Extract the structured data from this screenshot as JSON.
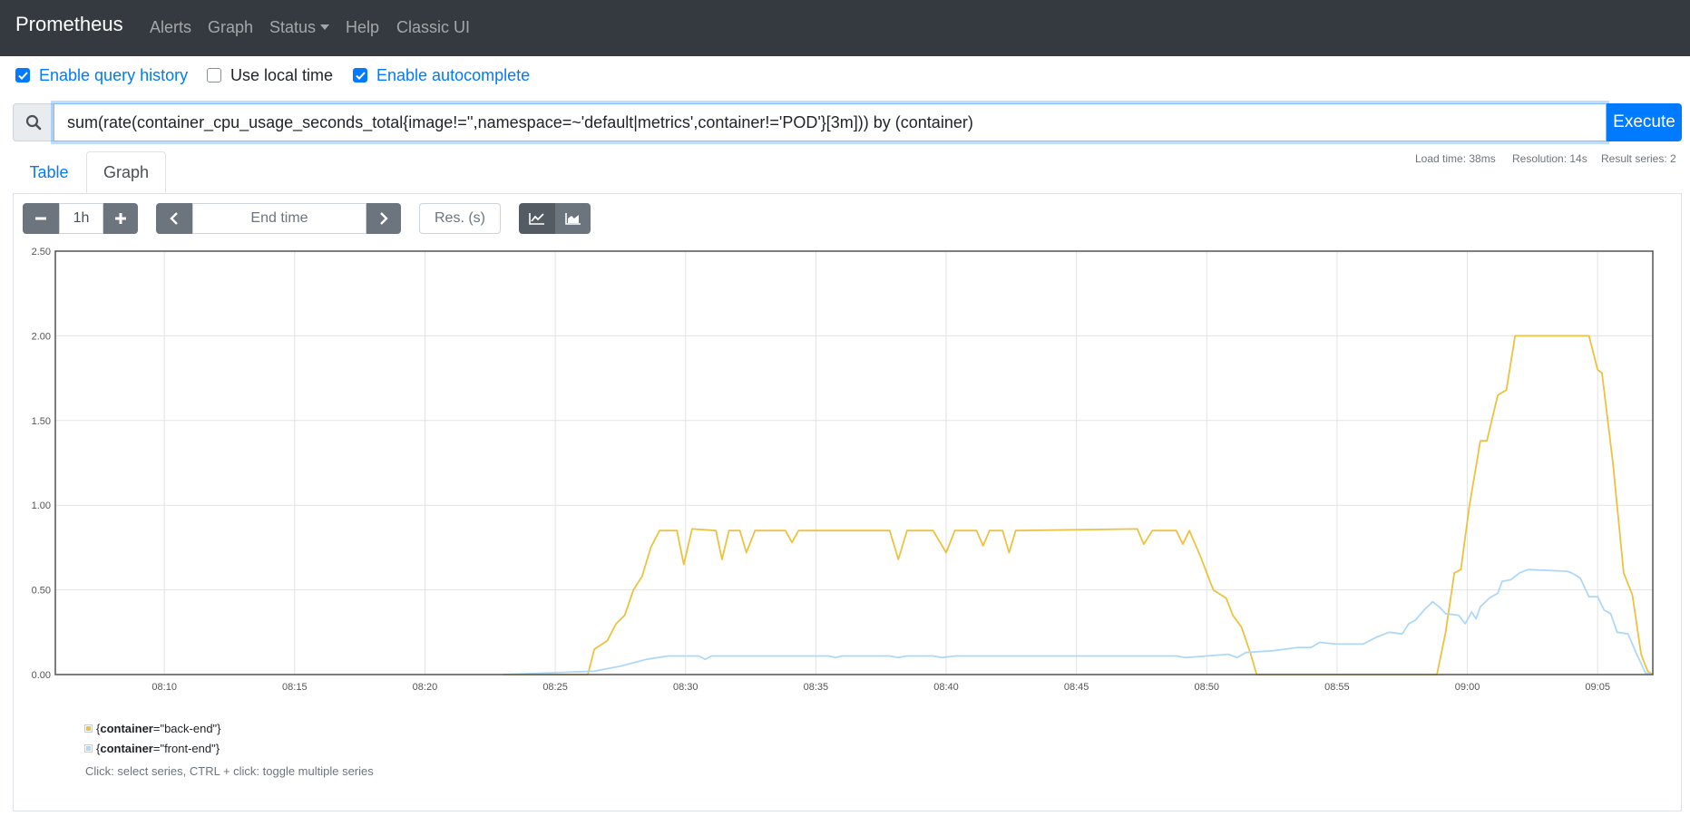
{
  "navbar": {
    "brand": "Prometheus",
    "items": [
      {
        "label": "Alerts"
      },
      {
        "label": "Graph"
      },
      {
        "label": "Status"
      },
      {
        "label": "Help"
      },
      {
        "label": "Classic UI"
      }
    ]
  },
  "options": {
    "query_history": {
      "label": "Enable query history",
      "checked": true
    },
    "local_time": {
      "label": "Use local time",
      "checked": false
    },
    "autocomplete": {
      "label": "Enable autocomplete",
      "checked": true
    }
  },
  "query": {
    "expression": "sum(rate(container_cpu_usage_seconds_total{image!='',namespace=~'default|metrics',container!='POD'}[3m])) by (container)",
    "execute_label": "Execute"
  },
  "tabs": {
    "table": "Table",
    "graph": "Graph",
    "active": "graph"
  },
  "stats": {
    "load_time": "Load time: 38ms",
    "resolution": "Resolution: 14s",
    "result_series": "Result series: 2"
  },
  "controls": {
    "range": "1h",
    "end_time_placeholder": "End time",
    "resolution_placeholder": "Res. (s)",
    "mode": "lines"
  },
  "icons": {
    "search": "search-icon",
    "minus": "minus-icon",
    "plus": "plus-icon",
    "prev": "chevron-left-icon",
    "next": "chevron-right-icon",
    "lines": "line-chart-icon",
    "stacked": "area-chart-icon"
  },
  "colors": {
    "navbar": "#343a40",
    "accent": "#007bff",
    "back_end": "#edc240",
    "front_end": "#afd8f8"
  },
  "legend": {
    "items": [
      {
        "key": "container",
        "value": "\"back-end\"",
        "color": "#edc240"
      },
      {
        "key": "container",
        "value": "\"front-end\"",
        "color": "#afd8f8"
      }
    ],
    "hint": "Click: select series, CTRL + click: toggle multiple series"
  },
  "chart_data": {
    "type": "line",
    "x_unit": "time (HH:MM)",
    "xlim": [
      "08:05:49",
      "09:07:07"
    ],
    "ylim": [
      0,
      2.5
    ],
    "yticks": [
      "0.00",
      "0.50",
      "1.00",
      "1.50",
      "2.00",
      "2.50"
    ],
    "xticks": [
      "08:10",
      "08:15",
      "08:20",
      "08:25",
      "08:30",
      "08:35",
      "08:40",
      "08:45",
      "08:50",
      "08:55",
      "09:00",
      "09:05"
    ],
    "grid": true,
    "series": [
      {
        "name": "{container=\"back-end\"}",
        "color": "#edc240",
        "points": [
          [
            "08:23:00",
            0
          ],
          [
            "08:26:15",
            0
          ],
          [
            "08:26:30",
            0.15
          ],
          [
            "08:27:00",
            0.2
          ],
          [
            "08:27:20",
            0.3
          ],
          [
            "08:27:40",
            0.35
          ],
          [
            "08:28:00",
            0.5
          ],
          [
            "08:28:20",
            0.58
          ],
          [
            "08:28:40",
            0.75
          ],
          [
            "08:29:00",
            0.85
          ],
          [
            "08:29:40",
            0.85
          ],
          [
            "08:29:56",
            0.65
          ],
          [
            "08:30:15",
            0.86
          ],
          [
            "08:31:10",
            0.85
          ],
          [
            "08:31:24",
            0.68
          ],
          [
            "08:31:40",
            0.85
          ],
          [
            "08:32:05",
            0.85
          ],
          [
            "08:32:20",
            0.72
          ],
          [
            "08:32:40",
            0.85
          ],
          [
            "08:33:50",
            0.85
          ],
          [
            "08:34:05",
            0.78
          ],
          [
            "08:34:20",
            0.85
          ],
          [
            "08:37:50",
            0.85
          ],
          [
            "08:38:10",
            0.68
          ],
          [
            "08:38:30",
            0.85
          ],
          [
            "08:39:30",
            0.85
          ],
          [
            "08:40:00",
            0.72
          ],
          [
            "08:40:20",
            0.85
          ],
          [
            "08:41:10",
            0.85
          ],
          [
            "08:41:25",
            0.76
          ],
          [
            "08:41:40",
            0.85
          ],
          [
            "08:42:10",
            0.85
          ],
          [
            "08:42:25",
            0.72
          ],
          [
            "08:42:40",
            0.85
          ],
          [
            "08:47:20",
            0.86
          ],
          [
            "08:47:35",
            0.77
          ],
          [
            "08:47:55",
            0.85
          ],
          [
            "08:48:50",
            0.85
          ],
          [
            "08:49:05",
            0.77
          ],
          [
            "08:49:20",
            0.85
          ],
          [
            "08:49:45",
            0.7
          ],
          [
            "08:50:15",
            0.5
          ],
          [
            "08:50:45",
            0.45
          ],
          [
            "08:51:00",
            0.35
          ],
          [
            "08:51:20",
            0.28
          ],
          [
            "08:51:40",
            0.13
          ],
          [
            "08:51:55",
            0
          ],
          [
            "08:58:50",
            0
          ],
          [
            "08:59:10",
            0.25
          ],
          [
            "08:59:30",
            0.6
          ],
          [
            "08:59:45",
            0.62
          ],
          [
            "09:00:05",
            1.0
          ],
          [
            "09:00:30",
            1.38
          ],
          [
            "09:00:45",
            1.38
          ],
          [
            "09:01:10",
            1.65
          ],
          [
            "09:01:30",
            1.68
          ],
          [
            "09:01:50",
            2.0
          ],
          [
            "09:04:40",
            2.0
          ],
          [
            "09:05:00",
            1.8
          ],
          [
            "09:05:10",
            1.78
          ],
          [
            "09:05:35",
            1.25
          ],
          [
            "09:06:00",
            0.6
          ],
          [
            "09:06:20",
            0.47
          ],
          [
            "09:06:40",
            0.12
          ],
          [
            "09:06:55",
            0.02
          ],
          [
            "09:07:07",
            0
          ]
        ]
      },
      {
        "name": "{container=\"front-end\"}",
        "color": "#afd8f8",
        "points": [
          [
            "08:23:00",
            0
          ],
          [
            "08:26:30",
            0.02
          ],
          [
            "08:27:30",
            0.05
          ],
          [
            "08:28:30",
            0.09
          ],
          [
            "08:29:20",
            0.11
          ],
          [
            "08:30:30",
            0.11
          ],
          [
            "08:30:45",
            0.09
          ],
          [
            "08:31:00",
            0.11
          ],
          [
            "08:35:30",
            0.11
          ],
          [
            "08:35:45",
            0.1
          ],
          [
            "08:36:00",
            0.11
          ],
          [
            "08:37:50",
            0.11
          ],
          [
            "08:38:10",
            0.1
          ],
          [
            "08:38:30",
            0.11
          ],
          [
            "08:39:30",
            0.11
          ],
          [
            "08:39:50",
            0.1
          ],
          [
            "08:40:20",
            0.11
          ],
          [
            "08:48:50",
            0.11
          ],
          [
            "08:49:10",
            0.1
          ],
          [
            "08:50:00",
            0.11
          ],
          [
            "08:50:50",
            0.12
          ],
          [
            "08:51:10",
            0.1
          ],
          [
            "08:51:30",
            0.13
          ],
          [
            "08:52:30",
            0.14
          ],
          [
            "08:53:00",
            0.15
          ],
          [
            "08:53:30",
            0.16
          ],
          [
            "08:54:00",
            0.16
          ],
          [
            "08:54:20",
            0.19
          ],
          [
            "08:55:00",
            0.18
          ],
          [
            "08:56:00",
            0.18
          ],
          [
            "08:56:30",
            0.22
          ],
          [
            "08:57:00",
            0.25
          ],
          [
            "08:57:30",
            0.24
          ],
          [
            "08:57:45",
            0.3
          ],
          [
            "08:58:00",
            0.32
          ],
          [
            "08:58:20",
            0.38
          ],
          [
            "08:58:40",
            0.43
          ],
          [
            "08:58:55",
            0.4
          ],
          [
            "08:59:10",
            0.36
          ],
          [
            "08:59:40",
            0.35
          ],
          [
            "08:59:55",
            0.3
          ],
          [
            "09:00:10",
            0.37
          ],
          [
            "09:00:20",
            0.33
          ],
          [
            "09:00:30",
            0.4
          ],
          [
            "09:00:50",
            0.45
          ],
          [
            "09:01:10",
            0.48
          ],
          [
            "09:01:20",
            0.55
          ],
          [
            "09:01:40",
            0.56
          ],
          [
            "09:02:00",
            0.6
          ],
          [
            "09:02:20",
            0.62
          ],
          [
            "09:03:50",
            0.61
          ],
          [
            "09:04:00",
            0.6
          ],
          [
            "09:04:20",
            0.57
          ],
          [
            "09:04:40",
            0.46
          ],
          [
            "09:05:00",
            0.46
          ],
          [
            "09:05:15",
            0.38
          ],
          [
            "09:05:30",
            0.36
          ],
          [
            "09:05:45",
            0.25
          ],
          [
            "09:06:10",
            0.24
          ],
          [
            "09:06:30",
            0.12
          ],
          [
            "09:06:50",
            0.01
          ],
          [
            "09:07:07",
            0
          ]
        ]
      }
    ]
  }
}
